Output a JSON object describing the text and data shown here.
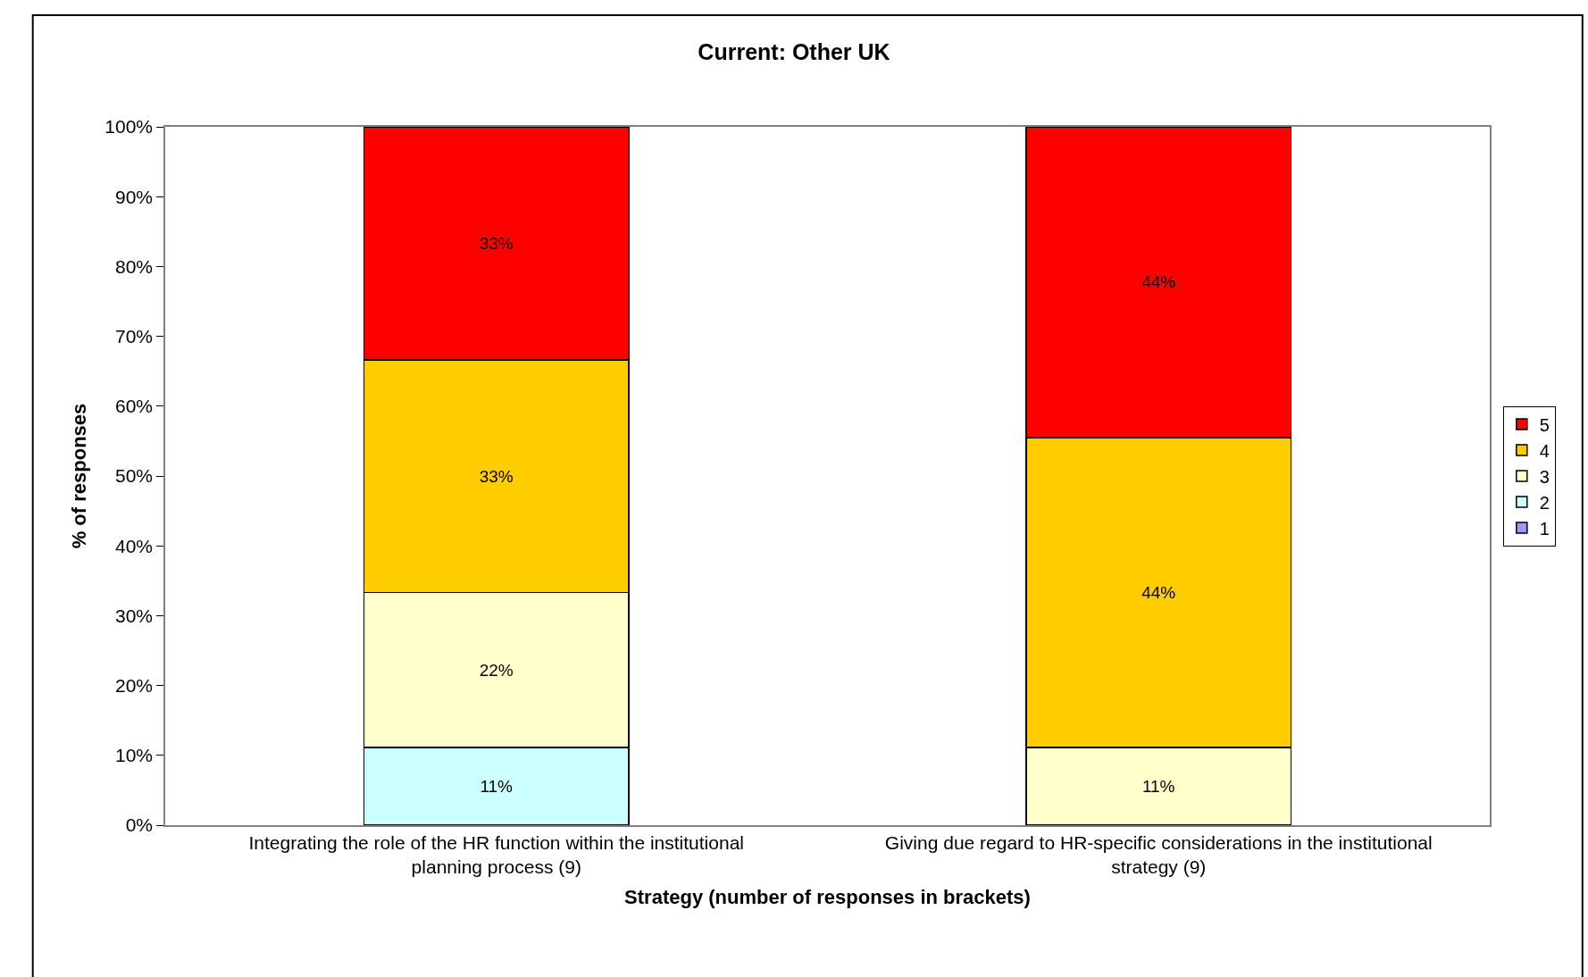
{
  "chart_data": {
    "type": "bar",
    "stacked": true,
    "title": "Current: Other UK",
    "xlabel": "Strategy (number of responses in brackets)",
    "ylabel": "% of responses",
    "categories": [
      "Integrating the role of the HR function within the institutional planning process (9)",
      "Giving due regard to HR-specific considerations in the institutional strategy (9)"
    ],
    "series": [
      {
        "name": "1",
        "color": "#9999ff",
        "values": [
          0,
          0
        ],
        "value_labels": [
          null,
          null
        ]
      },
      {
        "name": "2",
        "color": "#ccffff",
        "values": [
          11.1,
          0
        ],
        "value_labels": [
          "11%",
          null
        ]
      },
      {
        "name": "3",
        "color": "#ffffcc",
        "values": [
          22.2,
          11.1
        ],
        "value_labels": [
          "22%",
          "11%"
        ]
      },
      {
        "name": "4",
        "color": "#ffcc00",
        "values": [
          33.3,
          44.4
        ],
        "value_labels": [
          "33%",
          "44%"
        ]
      },
      {
        "name": "5",
        "color": "#ff0000",
        "values": [
          33.4,
          44.5
        ],
        "value_labels": [
          "33%",
          "44%"
        ]
      }
    ],
    "ylim": [
      0,
      100
    ],
    "yticks": [
      {
        "value": 0,
        "label": "0%"
      },
      {
        "value": 10,
        "label": "10%"
      },
      {
        "value": 20,
        "label": "20%"
      },
      {
        "value": 30,
        "label": "30%"
      },
      {
        "value": 40,
        "label": "40%"
      },
      {
        "value": 50,
        "label": "50%"
      },
      {
        "value": 60,
        "label": "60%"
      },
      {
        "value": 70,
        "label": "70%"
      },
      {
        "value": 80,
        "label": "80%"
      },
      {
        "value": 90,
        "label": "90%"
      },
      {
        "value": 100,
        "label": "100%"
      }
    ],
    "grid": false,
    "legend": "right"
  }
}
